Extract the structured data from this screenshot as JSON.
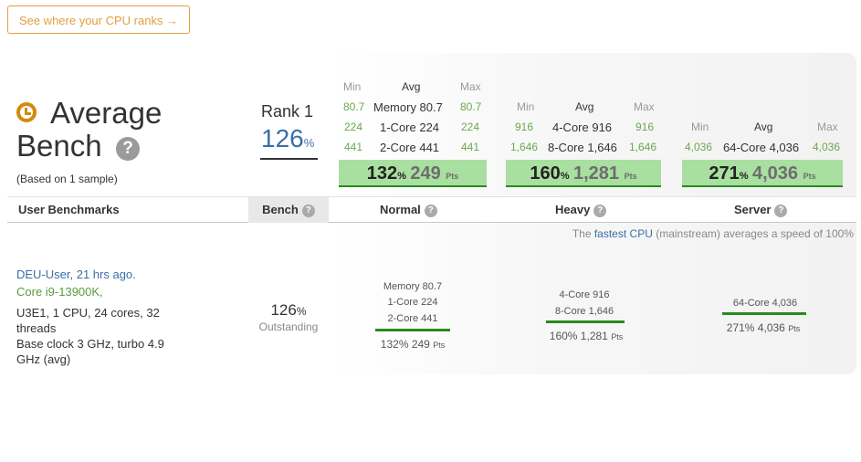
{
  "rank_button": "See where your CPU ranks →",
  "summary": {
    "title_line1": "Average",
    "title_line2": "Bench",
    "based_on": "(Based on 1 sample)",
    "rank_label": "Rank 1",
    "rank_value": "126",
    "rank_unit": "%"
  },
  "groups": [
    {
      "min_h": "Min",
      "avg_h": "Avg",
      "max_h": "Max",
      "rows": [
        {
          "min": "80.7",
          "label": "Memory 80.7",
          "max": "80.7"
        },
        {
          "min": "224",
          "label": "1-Core 224",
          "max": "224"
        },
        {
          "min": "441",
          "label": "2-Core 441",
          "max": "441"
        }
      ],
      "pct": "132",
      "pts": "249"
    },
    {
      "min_h": "Min",
      "avg_h": "Avg",
      "max_h": "Max",
      "rows": [
        {
          "min": "916",
          "label": "4-Core 916",
          "max": "916"
        },
        {
          "min": "1,646",
          "label": "8-Core 1,646",
          "max": "1,646"
        }
      ],
      "pct": "160",
      "pts": "1,281"
    },
    {
      "min_h": "Min",
      "avg_h": "Avg",
      "max_h": "Max",
      "rows": [
        {
          "min": "4,036",
          "label": "64-Core 4,036",
          "max": "4,036"
        }
      ],
      "pct": "271",
      "pts": "4,036"
    }
  ],
  "pct_unit": "%",
  "pts_unit": "Pts",
  "table_headers": {
    "user_benchmarks": "User Benchmarks",
    "bench": "Bench",
    "normal": "Normal",
    "heavy": "Heavy",
    "server": "Server"
  },
  "fastest": {
    "pre": "The ",
    "link": "fastest CPU",
    "post": " (mainstream) averages a speed of 100%"
  },
  "entry": {
    "user": "DEU-User, 21 hrs ago.",
    "cpu": "Core i9-13900K,",
    "spec1": "U3E1, 1 CPU, 24 cores, 32 threads",
    "spec2": "Base clock 3 GHz, turbo 4.9 GHz (avg)",
    "bench": "126",
    "grade": "Outstanding",
    "normal_lines": [
      "Memory 80.7",
      "1-Core 224",
      "2-Core 441"
    ],
    "normal_score": "132% 249",
    "heavy_lines": [
      "4-Core 916",
      "8-Core 1,646"
    ],
    "heavy_score": "160% 1,281",
    "server_lines": [
      "64-Core 4,036"
    ],
    "server_score": "271% 4,036"
  }
}
